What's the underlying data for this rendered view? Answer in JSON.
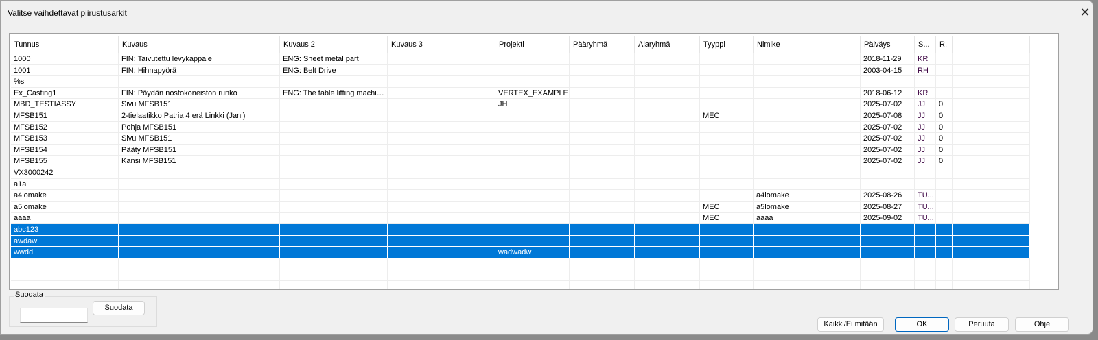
{
  "window": {
    "title": "Valitse vaihdettavat piirustusarkit",
    "close_icon": "close-icon"
  },
  "table": {
    "columns": [
      "Tunnus",
      "Kuvaus",
      "Kuvaus 2",
      "Kuvaus 3",
      "Projekti",
      "Pääryhmä",
      "Alaryhmä",
      "Tyyppi",
      "Nimike",
      "Päiväys",
      "S...",
      "R.",
      ""
    ],
    "rows": [
      {
        "cells": [
          "1000",
          "FIN: Taivutettu levykappale",
          "ENG: Sheet metal part",
          "",
          "",
          "",
          "",
          "",
          "",
          "2018-11-29",
          "KR",
          "",
          ""
        ],
        "selected": false
      },
      {
        "cells": [
          "1001",
          "FIN: Hihnapyörä",
          "ENG: Belt Drive",
          "",
          "",
          "",
          "",
          "",
          "",
          "2003-04-15",
          "RH",
          "",
          ""
        ],
        "selected": false
      },
      {
        "cells": [
          "%s",
          "",
          "",
          "",
          "",
          "",
          "",
          "",
          "",
          "",
          "",
          "",
          ""
        ],
        "selected": false
      },
      {
        "cells": [
          "Ex_Casting1",
          "FIN: Pöydän nostokoneiston runko",
          "ENG: The table lifting machine ...",
          "",
          "VERTEX_EXAMPLE",
          "",
          "",
          "",
          "",
          "2018-06-12",
          "KR",
          "",
          ""
        ],
        "selected": false
      },
      {
        "cells": [
          "MBD_TESTIASSY",
          "Sivu MFSB151",
          "",
          "",
          "JH",
          "",
          "",
          "",
          "",
          "2025-07-02",
          "JJ",
          "0",
          ""
        ],
        "selected": false
      },
      {
        "cells": [
          "MFSB151",
          "2-tielaatikko Patria 4 erä Linkki (Jani)",
          "",
          "",
          "",
          "",
          "",
          "MEC",
          "",
          "2025-07-08",
          "JJ",
          "0",
          ""
        ],
        "selected": false
      },
      {
        "cells": [
          "MFSB152",
          "Pohja MFSB151",
          "",
          "",
          "",
          "",
          "",
          "",
          "",
          "2025-07-02",
          "JJ",
          "0",
          ""
        ],
        "selected": false
      },
      {
        "cells": [
          "MFSB153",
          "Sivu MFSB151",
          "",
          "",
          "",
          "",
          "",
          "",
          "",
          "2025-07-02",
          "JJ",
          "0",
          ""
        ],
        "selected": false
      },
      {
        "cells": [
          "MFSB154",
          "Pääty MFSB151",
          "",
          "",
          "",
          "",
          "",
          "",
          "",
          "2025-07-02",
          "JJ",
          "0",
          ""
        ],
        "selected": false
      },
      {
        "cells": [
          "MFSB155",
          "Kansi MFSB151",
          "",
          "",
          "",
          "",
          "",
          "",
          "",
          "2025-07-02",
          "JJ",
          "0",
          ""
        ],
        "selected": false
      },
      {
        "cells": [
          "VX3000242",
          "",
          "",
          "",
          "",
          "",
          "",
          "",
          "",
          "",
          "",
          "",
          ""
        ],
        "selected": false
      },
      {
        "cells": [
          "a1a",
          "",
          "",
          "",
          "",
          "",
          "",
          "",
          "",
          "",
          "",
          "",
          ""
        ],
        "selected": false
      },
      {
        "cells": [
          "a4lomake",
          "",
          "",
          "",
          "",
          "",
          "",
          "",
          "a4lomake",
          "2025-08-26",
          "TU...",
          "",
          ""
        ],
        "selected": false
      },
      {
        "cells": [
          "a5lomake",
          "",
          "",
          "",
          "",
          "",
          "",
          "MEC",
          "a5lomake",
          "2025-08-27",
          "TU...",
          "",
          ""
        ],
        "selected": false
      },
      {
        "cells": [
          "aaaa",
          "",
          "",
          "",
          "",
          "",
          "",
          "MEC",
          "aaaa",
          "2025-09-02",
          "TU...",
          "",
          ""
        ],
        "selected": false
      },
      {
        "cells": [
          "abc123",
          "",
          "",
          "",
          "",
          "",
          "",
          "",
          "",
          "",
          "",
          "",
          ""
        ],
        "selected": true
      },
      {
        "cells": [
          "awdaw",
          "",
          "",
          "",
          "",
          "",
          "",
          "",
          "",
          "",
          "",
          "",
          ""
        ],
        "selected": true
      },
      {
        "cells": [
          "wwdd",
          "",
          "",
          "",
          "wadwadw",
          "",
          "",
          "",
          "",
          "",
          "",
          "",
          ""
        ],
        "selected": true
      },
      {
        "cells": [
          "",
          "",
          "",
          "",
          "",
          "",
          "",
          "",
          "",
          "",
          "",
          "",
          ""
        ],
        "selected": false
      },
      {
        "cells": [
          "",
          "",
          "",
          "",
          "",
          "",
          "",
          "",
          "",
          "",
          "",
          "",
          ""
        ],
        "selected": false
      },
      {
        "cells": [
          "",
          "",
          "",
          "",
          "",
          "",
          "",
          "",
          "",
          "",
          "",
          "",
          ""
        ],
        "selected": false
      }
    ]
  },
  "filter": {
    "group_label": "Suodata",
    "input_value": "",
    "button_label": "Suodata"
  },
  "buttons": {
    "all_none": "Kaikki/Ei mitään",
    "ok": "OK",
    "cancel": "Peruuta",
    "help": "Ohje"
  },
  "colors": {
    "selection": "#0078d7",
    "accent": "#0067c0"
  }
}
